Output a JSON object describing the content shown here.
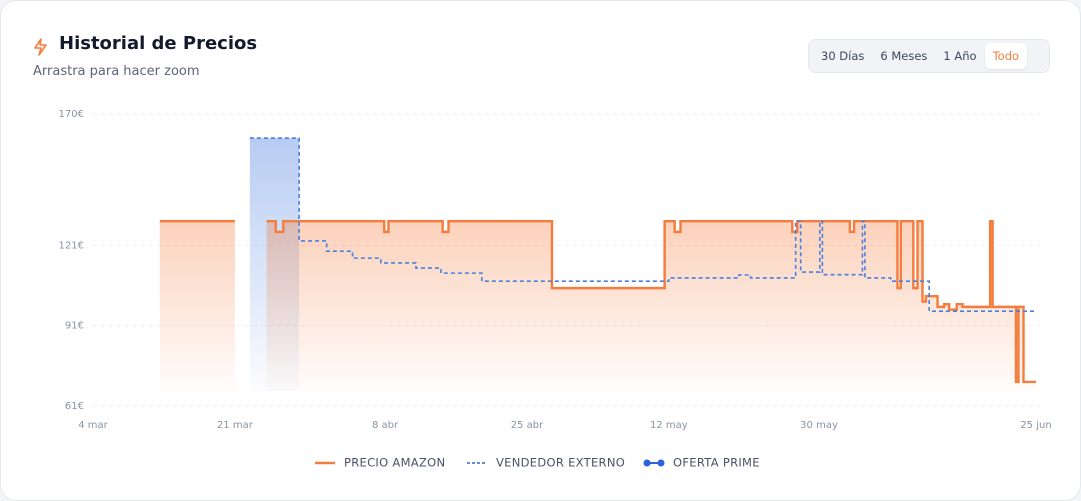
{
  "header": {
    "title": "Historial de Precios",
    "subtitle": "Arrastra para hacer zoom"
  },
  "ranges": [
    "30 Días",
    "6 Meses",
    "1 Año",
    "Todo"
  ],
  "active_range": 3,
  "chart_data": {
    "type": "step-line",
    "xlim": [
      0,
      113
    ],
    "xticks": [
      {
        "value": 0,
        "label": "4 mar"
      },
      {
        "value": 17,
        "label": "21 mar"
      },
      {
        "value": 35,
        "label": "8 abr"
      },
      {
        "value": 52,
        "label": "25 abr"
      },
      {
        "value": 69,
        "label": "12 may"
      },
      {
        "value": 87,
        "label": "30 may"
      },
      {
        "value": 113,
        "label": "25 jun"
      }
    ],
    "ylim": [
      61,
      170
    ],
    "yticks": [
      {
        "value": 61,
        "label": "61€"
      },
      {
        "value": 91,
        "label": "91€"
      },
      {
        "value": 121,
        "label": "121€"
      },
      {
        "value": 170,
        "label": "170€"
      }
    ],
    "grid": true,
    "series": [
      {
        "name": "PRECIO AMAZON",
        "color": "#f47c3c",
        "style": "solid",
        "fill": true,
        "x": [
          8,
          16.4,
          17,
          20.8,
          21.9,
          22.8,
          34.9,
          35.4,
          41.9,
          42.6,
          55,
          68.5,
          69.7,
          70.4,
          83.8,
          84.4,
          90.7,
          91.2,
          96.4,
          96.8,
          98.3,
          98.8,
          99.4,
          99.8,
          101.2,
          102,
          102.6,
          103.5,
          104.2,
          107.5,
          107.8,
          110.6,
          110.9,
          111.5,
          113
        ],
        "values": [
          130,
          130,
          null,
          130,
          126,
          130,
          126,
          130,
          126,
          130,
          105,
          130,
          126,
          130,
          126,
          130,
          126,
          130,
          105,
          130,
          105,
          130,
          100,
          102,
          98,
          99,
          97,
          99,
          98,
          130,
          98,
          70,
          98,
          70,
          70
        ]
      },
      {
        "name": "VENDEDOR EXTERNO",
        "color": "#4a7fe0",
        "style": "dashed",
        "fill": false,
        "x": [
          18.8,
          24.7,
          28,
          31.1,
          34.5,
          38.7,
          41.7,
          46.6,
          69,
          77.4,
          78.8,
          84.2,
          84.8,
          87.1,
          87.4,
          92.2,
          92.5,
          95.6,
          100.2,
          113
        ],
        "values": [
          161,
          122.6,
          118.8,
          116.2,
          114.4,
          112.5,
          110.6,
          107.6,
          108.8,
          109.9,
          108.8,
          130,
          111,
          130,
          110,
          130,
          108.8,
          107.6,
          96.4,
          96.4
        ]
      },
      {
        "name": "OFERTA PRIME",
        "color": "#2f62d8",
        "style": "dots",
        "fill": true,
        "x": [
          18.8,
          24.7
        ],
        "values": [
          161,
          161
        ]
      }
    ]
  }
}
